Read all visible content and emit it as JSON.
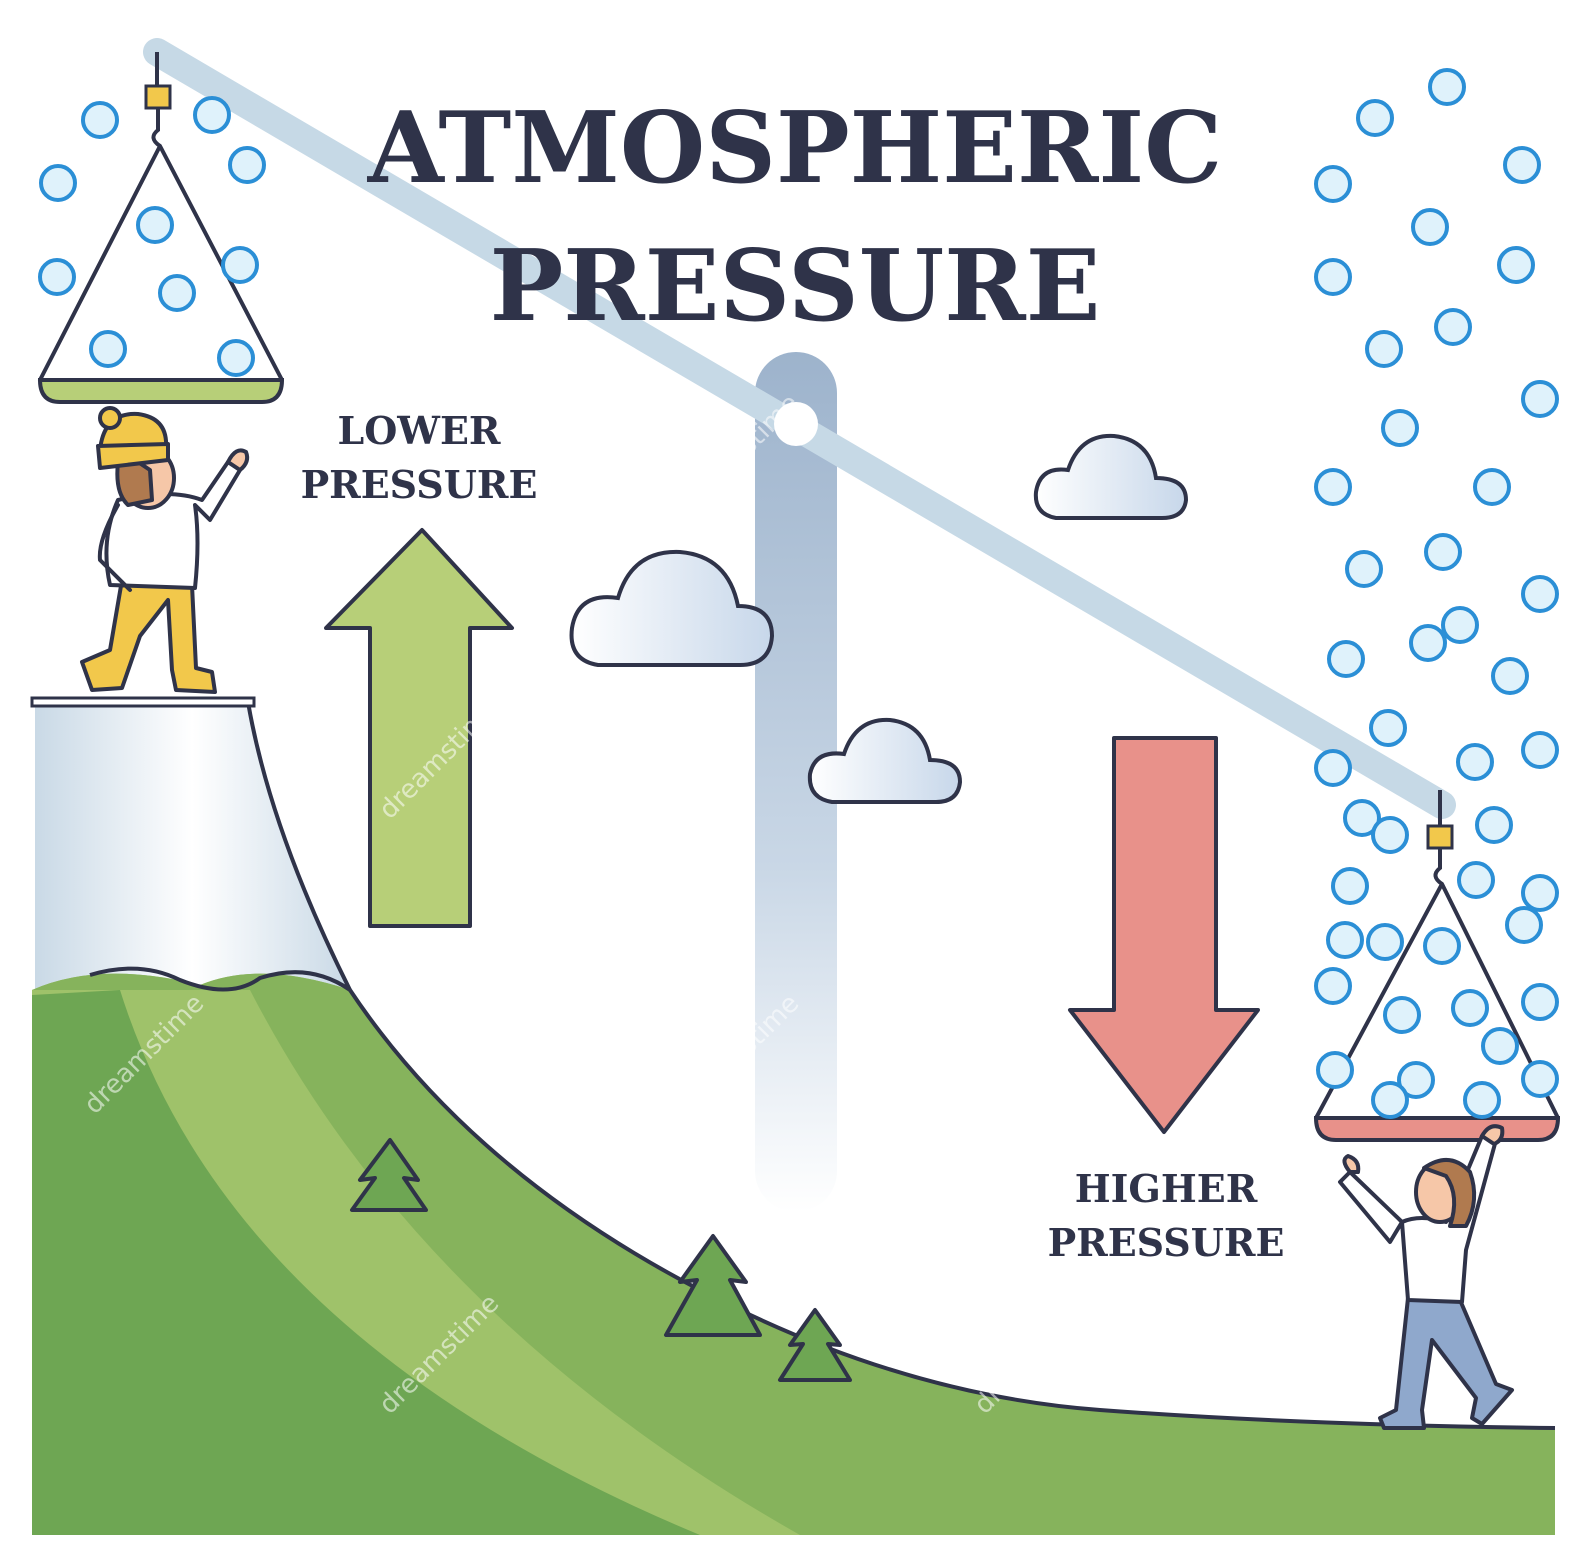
{
  "title": {
    "line1": "ATMOSPHERIC",
    "line2": "PRESSURE"
  },
  "labels": {
    "lower": {
      "line1": "LOWER",
      "line2": "PRESSURE"
    },
    "higher": {
      "line1": "HIGHER",
      "line2": "PRESSURE"
    }
  },
  "watermark": "dreamstime",
  "colors": {
    "outline": "#2f3349",
    "molecule_fill": "#dff2fb",
    "molecule_stroke": "#2b8fd6",
    "up_arrow": "#b7cf78",
    "down_arrow": "#e8918a",
    "beam": "#c6d9e6",
    "pole": "#a9bcd3",
    "hill_light": "#9fc26a",
    "hill_dark": "#6ea653"
  },
  "icons": {
    "up_arrow": "arrow-up-icon",
    "down_arrow": "arrow-down-icon",
    "cloud": "cloud-icon",
    "tree": "pine-tree-icon",
    "molecule": "air-molecule-icon"
  }
}
